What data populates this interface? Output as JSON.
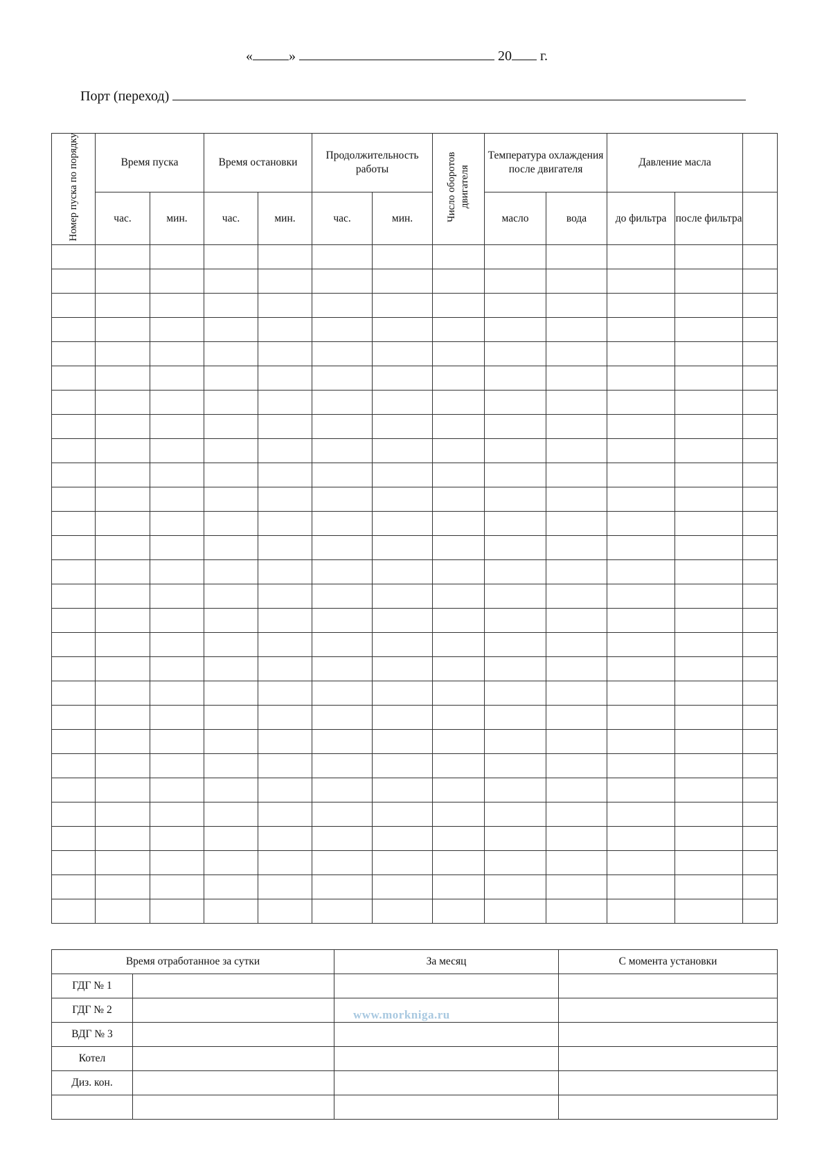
{
  "header": {
    "date_open_quote": "«",
    "date_close_quote": "»",
    "year_prefix": "20",
    "year_suffix": "г.",
    "port_label": "Порт (переход)"
  },
  "main_table": {
    "col_start_number": "Номер пуска по порядку",
    "group_start_time": "Время пуска",
    "group_stop_time": "Время остановки",
    "group_duration": "Продолжительность работы",
    "col_rpm": "Число оборотов двигателя",
    "group_cooling_temp": "Температура охлаждения после двигателя",
    "group_oil_pressure": "Давление масла",
    "sub_hours": "час.",
    "sub_minutes": "мин.",
    "sub_oil": "масло",
    "sub_water": "вода",
    "sub_before_filter": "до фильтра",
    "sub_after_filter": "после фильтра"
  },
  "summary_table": {
    "col_daily": "Время отработанное за сутки",
    "col_month": "За месяц",
    "col_since_install": "С момента установки",
    "rows": [
      "ГДГ № 1",
      "ГДГ № 2",
      "ВДГ № 3",
      "Котел",
      "Диз. кон.",
      ""
    ]
  },
  "watermark": "www.morkniga.ru"
}
